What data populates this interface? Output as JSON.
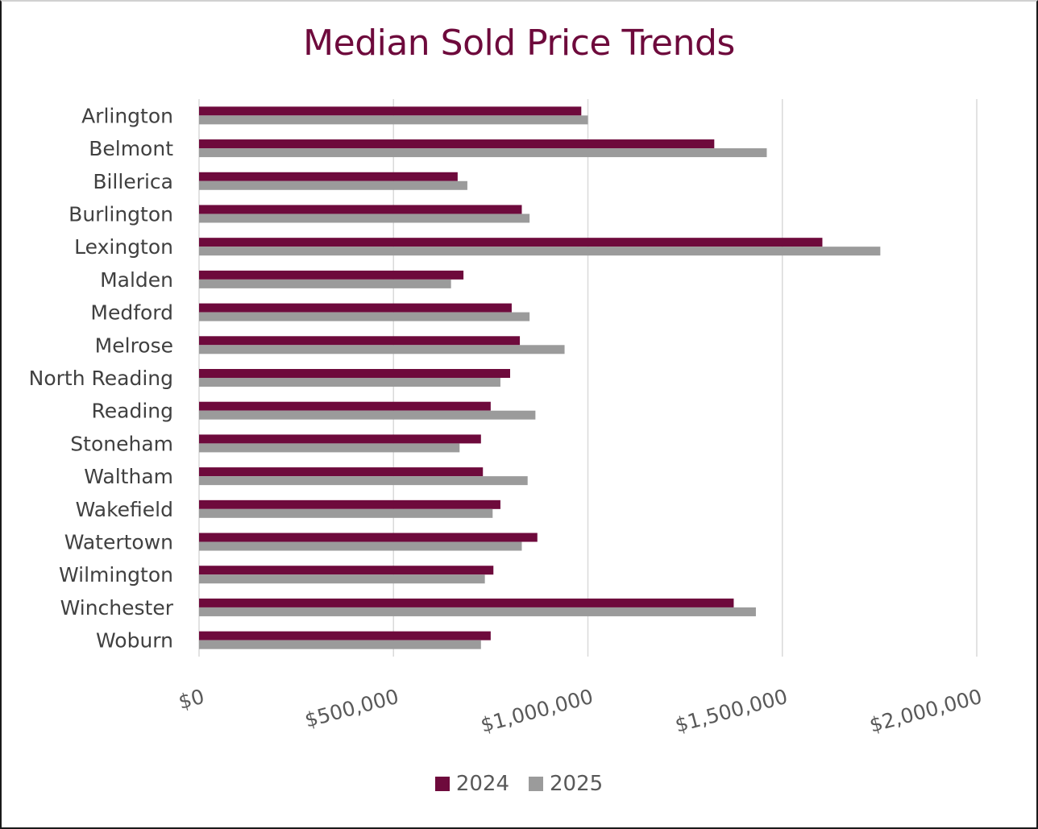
{
  "colors": {
    "series_2024": "#6e0a3c",
    "series_2025": "#9b9b9b",
    "gridline": "#d9d9d9",
    "title": "#6e0a3c"
  },
  "chart_data": {
    "type": "bar",
    "orientation": "horizontal",
    "title": "Median Sold Price Trends",
    "xlabel": "",
    "ylabel": "",
    "categories": [
      "Arlington",
      "Belmont",
      "Billerica",
      "Burlington",
      "Lexington",
      "Malden",
      "Medford",
      "Melrose",
      "North Reading",
      "Reading",
      "Stoneham",
      "Waltham",
      "Wakefield",
      "Watertown",
      "Wilmington",
      "Winchester",
      "Woburn"
    ],
    "series": [
      {
        "name": "2024",
        "values": [
          983000,
          1325000,
          665000,
          830000,
          1603000,
          680000,
          804000,
          825000,
          800000,
          750000,
          725000,
          730000,
          775000,
          870000,
          757000,
          1375000,
          750000
        ]
      },
      {
        "name": "2025",
        "values": [
          1000000,
          1460000,
          690000,
          850000,
          1752000,
          648000,
          850000,
          940000,
          775000,
          865000,
          670000,
          845000,
          755000,
          830000,
          735000,
          1432000,
          725000
        ]
      }
    ],
    "xlim": [
      0,
      2000000
    ],
    "tick_labels": [
      "$0",
      "$500,000",
      "$1,000,000",
      "$1,500,000",
      "$2,000,000"
    ],
    "grid": true,
    "legend": "bottom"
  }
}
